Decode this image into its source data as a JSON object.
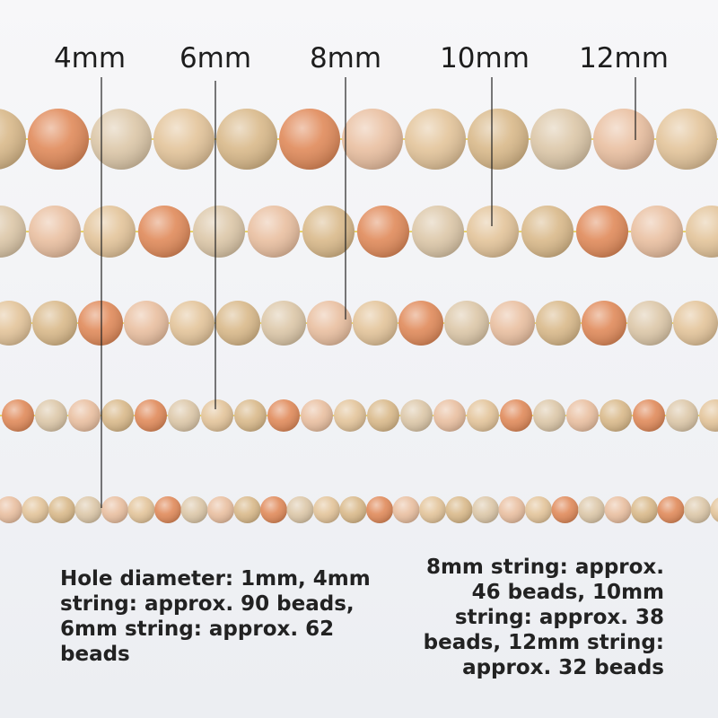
{
  "size_labels": [
    "4mm",
    "6mm",
    "8mm",
    "10mm",
    "12mm"
  ],
  "left_text": [
    "Hole diameter: 1mm, 4mm",
    "string: approx. 90 beads,",
    "6mm string: approx. 62",
    "beads"
  ],
  "right_text": [
    "8mm string: approx.",
    "46 beads, 10mm",
    "string: approx. 38",
    "beads, 12mm string:",
    "approx. 32 beads"
  ]
}
